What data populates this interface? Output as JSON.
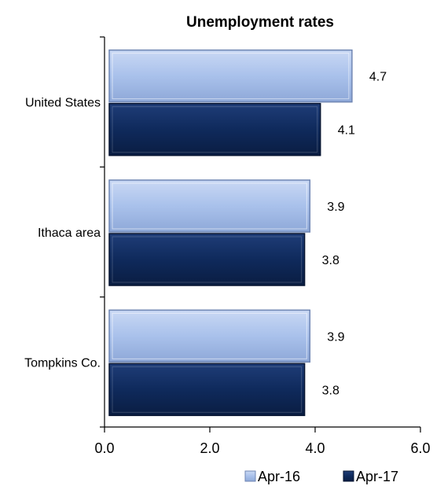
{
  "chart_data": {
    "type": "bar",
    "orientation": "horizontal",
    "title": "Unemployment rates",
    "categories": [
      "United States",
      "Ithaca area",
      "Tompkins Co."
    ],
    "series": [
      {
        "name": "Apr-16",
        "values": [
          4.7,
          3.9,
          3.9
        ],
        "color": "#a9c1eb"
      },
      {
        "name": "Apr-17",
        "values": [
          4.1,
          3.8,
          3.8
        ],
        "color": "#0f2a5c"
      }
    ],
    "value_labels": [
      [
        "4.7",
        "3.9",
        "3.9"
      ],
      [
        "4.1",
        "3.8",
        "3.8"
      ]
    ],
    "xlim": [
      0,
      6
    ],
    "xticks": [
      "0.0",
      "2.0",
      "4.0",
      "6.0"
    ],
    "xlabel": "",
    "ylabel": "",
    "grid": false,
    "legend_position": "bottom-right"
  }
}
